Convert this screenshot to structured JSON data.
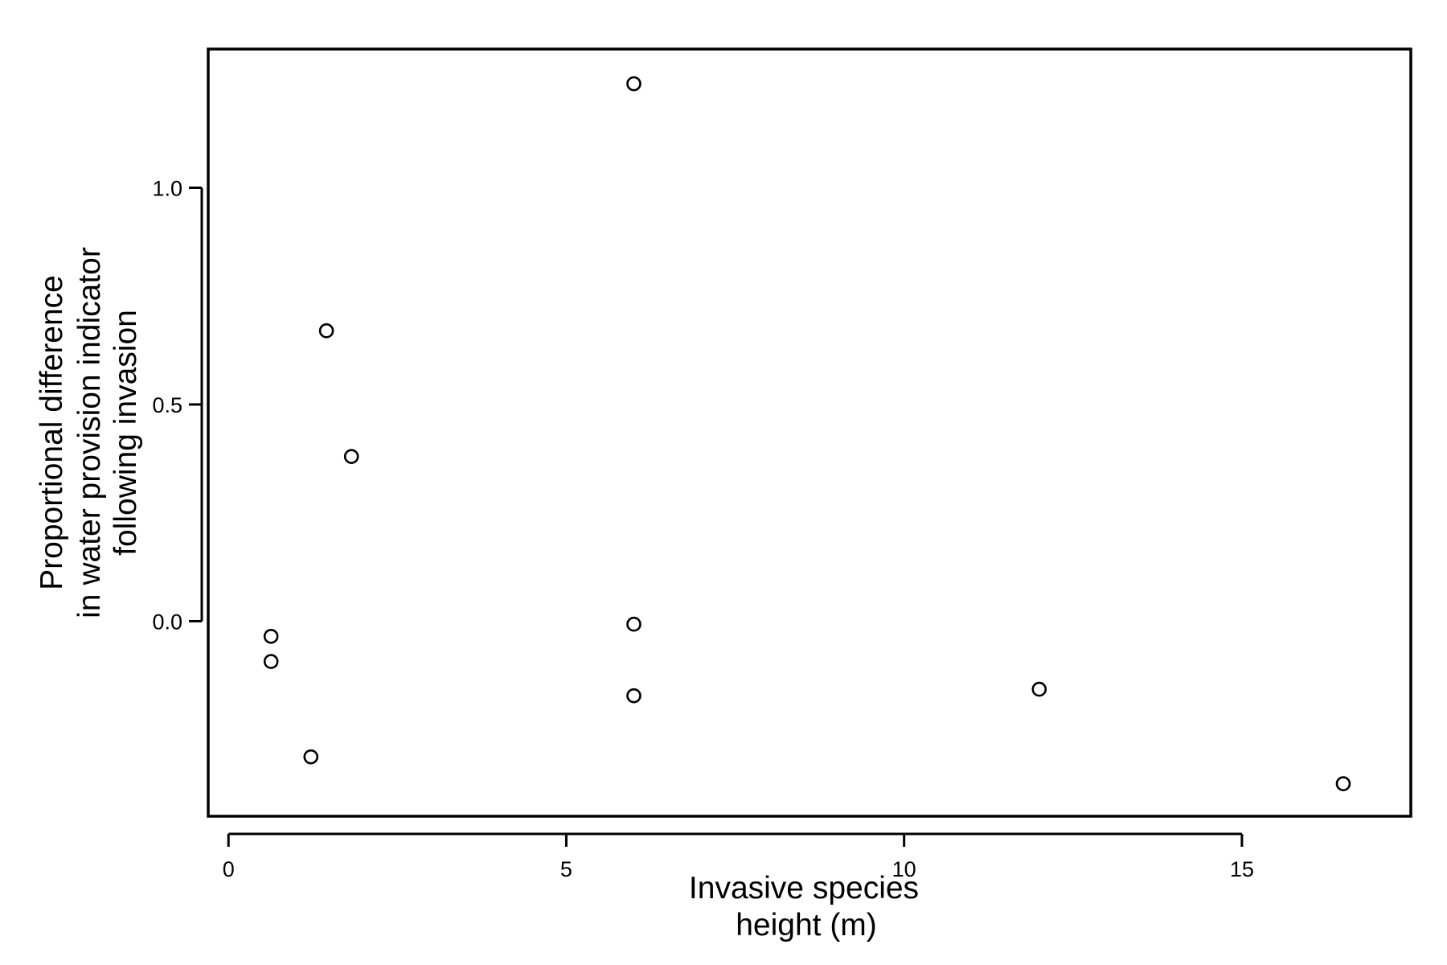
{
  "chart_data": {
    "type": "scatter",
    "xlabel_lines": [
      "Invasive species",
      "height (m)"
    ],
    "ylabel_lines": [
      "Proportional difference",
      "in water provision indicator",
      "following invasion"
    ],
    "xlim": [
      -0.3,
      17.5
    ],
    "ylim": [
      -0.45,
      1.32
    ],
    "xticks": [
      0,
      5,
      10,
      15
    ],
    "xtick_labels": [
      "0",
      "5",
      "10",
      "15"
    ],
    "yticks": [
      0.0,
      0.5,
      1.0
    ],
    "ytick_labels": [
      "0.0",
      "0.5",
      "1.0"
    ],
    "grid": false,
    "marker": "open-circle",
    "points": [
      {
        "x": 6.0,
        "y": 1.24
      },
      {
        "x": 1.45,
        "y": 0.67
      },
      {
        "x": 1.82,
        "y": 0.38
      },
      {
        "x": 0.63,
        "y": -0.035
      },
      {
        "x": 0.63,
        "y": -0.093
      },
      {
        "x": 6.0,
        "y": -0.007
      },
      {
        "x": 6.0,
        "y": -0.172
      },
      {
        "x": 1.22,
        "y": -0.313
      },
      {
        "x": 12.0,
        "y": -0.157
      },
      {
        "x": 16.5,
        "y": -0.375
      }
    ]
  }
}
